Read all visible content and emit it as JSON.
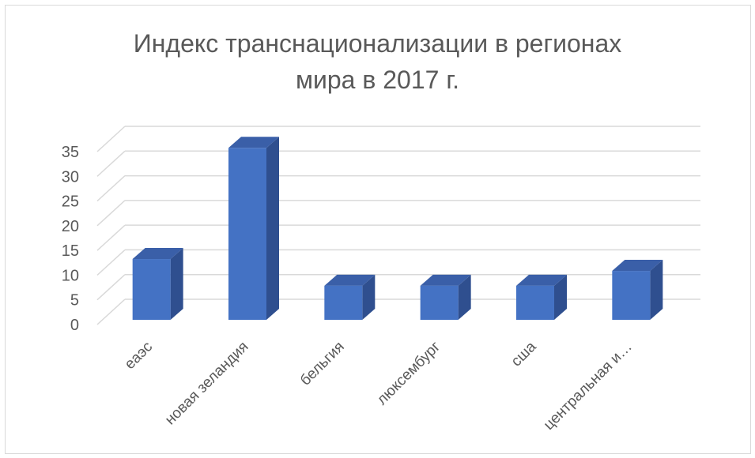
{
  "chart_data": {
    "type": "bar",
    "title_line1": "Индекс транснационализации в регионах",
    "title_line2": "мира в 2017 г.",
    "categories": [
      "еаэс",
      "новая зеландия",
      "бельгия",
      "люксембург",
      "сша",
      "центральная и…"
    ],
    "values": [
      12.3,
      34.8,
      6.9,
      6.9,
      6.9,
      9.9
    ],
    "ylim": [
      0,
      35
    ],
    "yticks": [
      "0",
      "5",
      "10",
      "15",
      "20",
      "25",
      "30",
      "35"
    ],
    "grid": true,
    "style": "3d-clustered-column",
    "colors": {
      "bar_front": "#4472c4",
      "bar_side": "#2f4f8f",
      "bar_top": "#3a5fa8",
      "grid": "#d9d9d9",
      "text": "#595959"
    }
  }
}
